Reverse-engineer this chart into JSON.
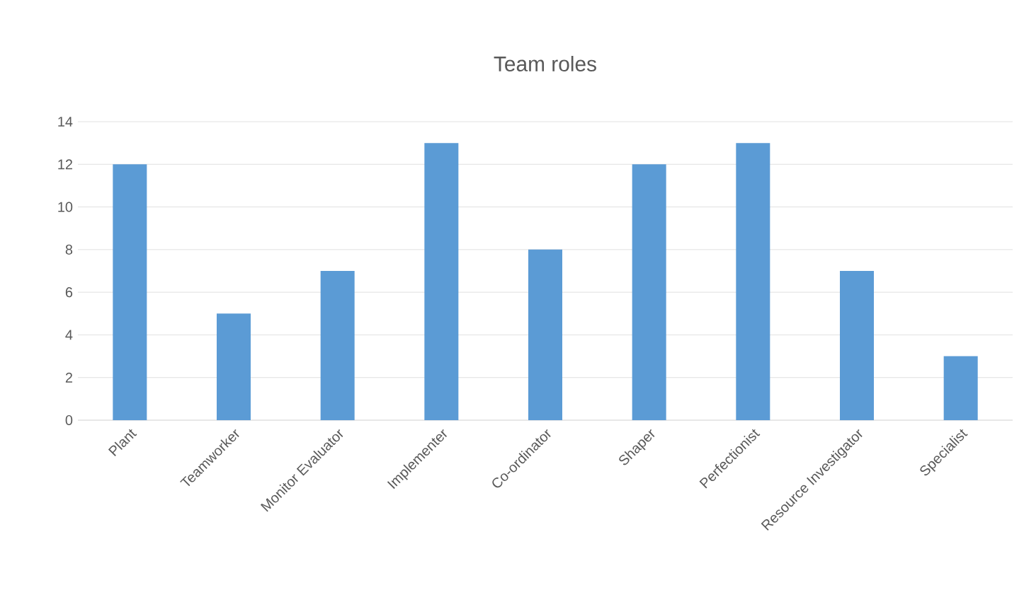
{
  "chart_data": {
    "type": "bar",
    "title": "Team roles",
    "categories": [
      "Plant",
      "Teamworker",
      "Monitor Evaluator",
      "Implementer",
      "Co-ordinator",
      "Shaper",
      "Perfectionist",
      "Resource Investigator",
      "Specialist"
    ],
    "values": [
      12,
      5,
      7,
      13,
      8,
      12,
      13,
      7,
      3
    ],
    "color": "#5b9bd5",
    "ylim": [
      0,
      14
    ],
    "yticks": [
      0,
      2,
      4,
      6,
      8,
      10,
      12,
      14
    ],
    "grid": "y"
  }
}
